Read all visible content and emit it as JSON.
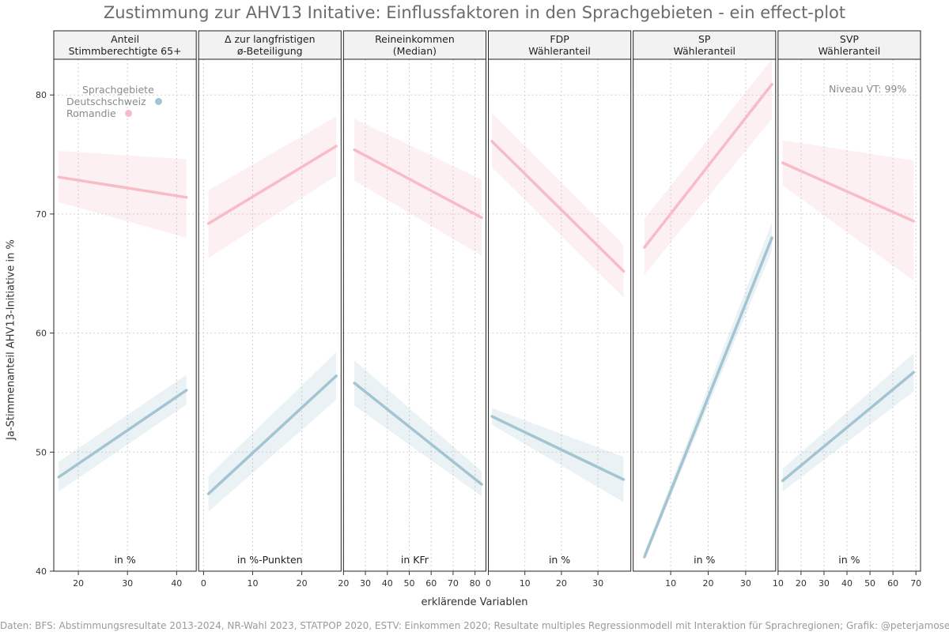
{
  "title": "Zustimmung zur AHV13 Initative: Einflussfaktoren in den Sprachgebieten - ein effect-plot",
  "ylabel": "Ja-Stimmenanteil AHV13-Initiative in %",
  "xlabel": "erklärende Variablen",
  "footer": "Daten: BFS: Abstimmungsresultate 2013-2024, NR-Wahl 2023, STATPOP 2020, ESTV: Einkommen 2020; Resultate multiples Regressionmodell mit Interaktion für Sprachregionen; Grafik: @peterjamoser",
  "legend": {
    "title": "Sprachgebiete",
    "items": [
      {
        "label": "Deutschschweiz",
        "color": "#a3c4d1"
      },
      {
        "label": "Romandie",
        "color": "#f7bcc6"
      }
    ]
  },
  "level_note": "Niveau VT: 99%",
  "chart_data": {
    "type": "line",
    "ylim": [
      40,
      83
    ],
    "yticks": [
      40,
      50,
      60,
      70,
      80
    ],
    "panels": [
      {
        "strip": [
          "Anteil",
          "Stimmberechtigte 65+"
        ],
        "unit": "in %",
        "xlim": [
          15,
          44
        ],
        "xticks": [
          20,
          30,
          40
        ],
        "series": [
          {
            "name": "Romandie",
            "x": [
              16,
              42
            ],
            "y": [
              73.1,
              71.4
            ],
            "lower": [
              71.0,
              68.0
            ],
            "upper": [
              75.3,
              74.6
            ]
          },
          {
            "name": "Deutschschweiz",
            "x": [
              16,
              42
            ],
            "y": [
              47.9,
              55.2
            ],
            "lower": [
              46.7,
              54.0
            ],
            "upper": [
              49.2,
              56.5
            ]
          }
        ]
      },
      {
        "strip": [
          "Δ zur langfristigen",
          "ø-Beteiligung"
        ],
        "unit": "in %-Punkten",
        "xlim": [
          -1,
          28
        ],
        "xticks": [
          0,
          10,
          20
        ],
        "series": [
          {
            "name": "Romandie",
            "x": [
              1,
              27
            ],
            "y": [
              69.2,
              75.7
            ],
            "lower": [
              66.3,
              73.2
            ],
            "upper": [
              72.0,
              78.2
            ]
          },
          {
            "name": "Deutschschweiz",
            "x": [
              1,
              27
            ],
            "y": [
              46.5,
              56.4
            ],
            "lower": [
              45.0,
              54.4
            ],
            "upper": [
              48.0,
              58.4
            ]
          }
        ]
      },
      {
        "strip": [
          "Reineinkommen",
          "(Median)"
        ],
        "unit": "in KFr",
        "xlim": [
          20,
          85
        ],
        "xticks": [
          20,
          30,
          40,
          50,
          60,
          70,
          80
        ],
        "series": [
          {
            "name": "Romandie",
            "x": [
              25,
              83
            ],
            "y": [
              75.4,
              69.7
            ],
            "lower": [
              72.8,
              66.5
            ],
            "upper": [
              78.0,
              72.9
            ]
          },
          {
            "name": "Deutschschweiz",
            "x": [
              25,
              83
            ],
            "y": [
              55.8,
              47.3
            ],
            "lower": [
              53.9,
              46.3
            ],
            "upper": [
              57.7,
              48.4
            ]
          }
        ]
      },
      {
        "strip": [
          "FDP",
          "Wähleranteil"
        ],
        "unit": "in %",
        "xlim": [
          0,
          39
        ],
        "xticks": [
          0,
          10,
          20,
          30
        ],
        "series": [
          {
            "name": "Romandie",
            "x": [
              1,
              37
            ],
            "y": [
              76.1,
              65.2
            ],
            "lower": [
              73.9,
              63.0
            ],
            "upper": [
              78.5,
              67.4
            ]
          },
          {
            "name": "Deutschschweiz",
            "x": [
              1,
              37
            ],
            "y": [
              53.0,
              47.7
            ],
            "lower": [
              52.3,
              45.8
            ],
            "upper": [
              53.7,
              49.6
            ]
          }
        ]
      },
      {
        "strip": [
          "SP",
          "Wähleranteil"
        ],
        "unit": "in %",
        "xlim": [
          0,
          38
        ],
        "xticks": [
          10,
          20,
          30
        ],
        "series": [
          {
            "name": "Romandie",
            "x": [
              3,
              37
            ],
            "y": [
              67.2,
              80.9
            ],
            "lower": [
              64.9,
              78.0
            ],
            "upper": [
              69.6,
              83.0
            ]
          },
          {
            "name": "Deutschschweiz",
            "x": [
              3,
              37
            ],
            "y": [
              41.2,
              68.0
            ],
            "lower": [
              40.9,
              66.9
            ],
            "upper": [
              41.6,
              69.3
            ]
          }
        ]
      },
      {
        "strip": [
          "SVP",
          "Wähleranteil"
        ],
        "unit": "in %",
        "xlim": [
          10,
          72
        ],
        "xticks": [
          10,
          20,
          30,
          40,
          50,
          60,
          70
        ],
        "series": [
          {
            "name": "Romandie",
            "x": [
              12,
              69
            ],
            "y": [
              74.3,
              69.4
            ],
            "lower": [
              72.4,
              64.4
            ],
            "upper": [
              76.2,
              74.5
            ]
          },
          {
            "name": "Deutschschweiz",
            "x": [
              12,
              69
            ],
            "y": [
              47.6,
              56.7
            ],
            "lower": [
              46.7,
              55.1
            ],
            "upper": [
              48.6,
              58.3
            ]
          }
        ]
      }
    ]
  }
}
